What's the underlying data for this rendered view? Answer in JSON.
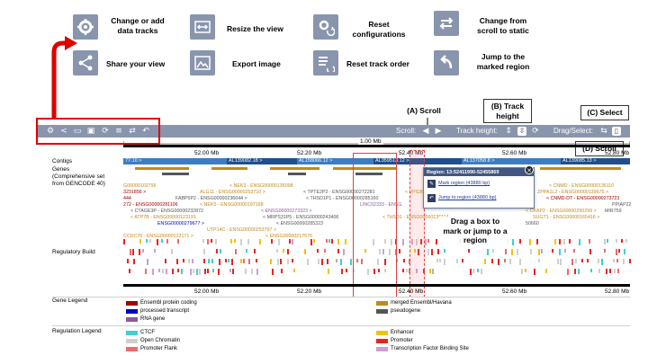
{
  "legend_actions": [
    {
      "icon": "gear-plus-icon",
      "label": "Change or add\ndata tracks"
    },
    {
      "icon": "share-icon",
      "label": "Share your view"
    },
    {
      "icon": "resize-icon",
      "label": "Resize the view"
    },
    {
      "icon": "image-icon",
      "label": "Export image"
    },
    {
      "icon": "reset-config-icon",
      "label": "Reset\nconfigurations"
    },
    {
      "icon": "reset-order-icon",
      "label": "Reset track order"
    },
    {
      "icon": "swap-arrows-icon",
      "label": "Change from\nscroll to static"
    },
    {
      "icon": "jump-arrow-icon",
      "label": "Jump to the\nmarked region"
    }
  ],
  "toolbar": {
    "scroll_label": "Scroll:",
    "track_height_label": "Track height:",
    "drag_select_label": "Drag/Select:"
  },
  "callouts": {
    "a_scroll": "(A) Scroll",
    "b_track_height": "(B) Track\nheight",
    "c_select": "(C) Select",
    "d_scroll": "(D) Scroll",
    "drag_box": "Drag a box to\nmark or jump to a\nregion"
  },
  "ruler": {
    "scale_label": "1.00 Mb",
    "top_ticks": [
      "52.00 Mb",
      "52.20 Mb",
      "52.40 Mb",
      "52.60 Mb",
      "52.80 Mb"
    ],
    "bottom_ticks": [
      "52.00 Mb",
      "52.20 Mb",
      "52.40 Mb",
      "52.60 Mb",
      "52.80 Mb"
    ]
  },
  "tracks": {
    "contigs_label": "Contigs",
    "genes_label": "Genes\n(Comprehensive set\nfrom GENCODE 40)",
    "regulatory_label": "Regulatory Build",
    "contigs": [
      "77.10 >",
      "AL139082.18 >",
      "AL158066.12 >",
      "AL359513.12 >",
      "AL137058.8 >",
      "AL139085.13 >"
    ]
  },
  "genes": [
    "G00000102796",
    "ALG11 - ENSG00000253710 >",
    "< NEK3 - ENSG00000136098",
    "< TPTE2P2 - ENSG00000272281",
    "< VPS36 -",
    "< CNMD - ENSG00000136110",
    "3231856 >",
    "FABP5P2 - ENSG00000236044 >",
    "< THSD1P1 - ENSG00000285160",
    "ZPPA1L2 - ENSG00000139675 >",
    "444",
    "< NEK5 - ENSG00000197168",
    "LINC02333 - ENSG",
    "< CNMD-DT - ENSG00000273723",
    "PPIAP22",
    "272 - ENSG00000281106",
    "< CTAGE3P - ENSG00000232872",
    "< ENSG00000273323 >",
    "< CKAP2 - ENSG00000250299 >",
    "MIR759",
    "< ATP7B - ENSG00000123191",
    "< MRPS31P5 - ENSG00000243406",
    "< THSD1 - ENSG00000136114",
    "SUGT1 - ENSG00000165416 >",
    "ENSG00000279677 >",
    "< ENSG00000285323",
    "50660",
    "UTP14C - ENSG00000253797 >",
    "CCDC70 - ENSG00000123171 >",
    "< ENSG00000217576"
  ],
  "popup": {
    "title": "Region: 13:52411990-52455869",
    "mark_label": "Mark region (43880 bp)",
    "jump_label": "Jump to region (43880 bp)",
    "close_glyph": "✕"
  },
  "gene_legend": {
    "label": "Gene Legend",
    "items": [
      {
        "label": "Ensembl protein coding",
        "color": "#a00000"
      },
      {
        "label": "merged Ensembl/Havana",
        "color": "#c08a1e"
      },
      {
        "label": "processed transcript",
        "color": "#0000c8"
      },
      {
        "label": "pseudogene",
        "color": "#555555"
      },
      {
        "label": "RNA gene",
        "color": "#8b5a9a"
      }
    ]
  },
  "regulation_legend": {
    "label": "Regulation Legend",
    "items": [
      {
        "label": "CTCF",
        "color": "#3fd0d0"
      },
      {
        "label": "Enhancer",
        "color": "#f2c400"
      },
      {
        "label": "Open Chromatin",
        "color": "#cfcfcf"
      },
      {
        "label": "Promoter",
        "color": "#ee2020"
      },
      {
        "label": "Promoter Flank",
        "color": "#f06a6a"
      },
      {
        "label": "Transcription Factor Binding Site",
        "color": "#c8a0d0"
      }
    ]
  },
  "colors": {
    "toolbar": "#8895ad",
    "highlight_red": "#e00000",
    "contig_dark": "#1f4e8c",
    "contig_light": "#3c7dc4"
  }
}
